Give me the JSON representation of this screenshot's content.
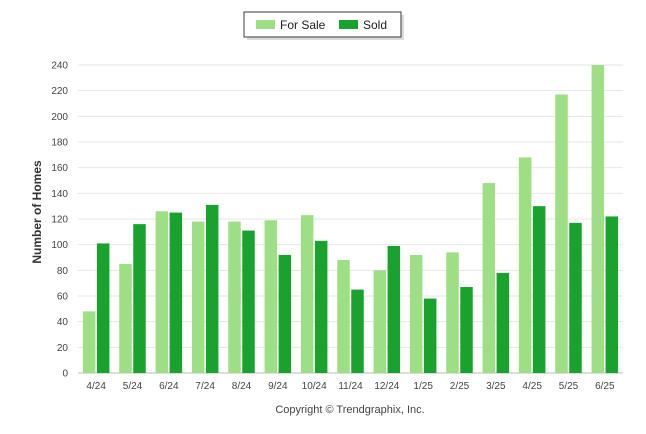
{
  "chart_data": {
    "type": "bar",
    "categories": [
      "4/24",
      "5/24",
      "6/24",
      "7/24",
      "8/24",
      "9/24",
      "10/24",
      "11/24",
      "12/24",
      "1/25",
      "2/25",
      "3/25",
      "4/25",
      "5/25",
      "6/25"
    ],
    "series": [
      {
        "name": "For Sale",
        "color": "#9ede84",
        "values": [
          48,
          85,
          126,
          118,
          118,
          119,
          123,
          88,
          80,
          92,
          94,
          148,
          168,
          217,
          240
        ]
      },
      {
        "name": "Sold",
        "color": "#1aa22f",
        "values": [
          101,
          116,
          125,
          131,
          111,
          92,
          103,
          65,
          99,
          58,
          67,
          78,
          130,
          117,
          122
        ]
      }
    ],
    "ylabel": "Number of Homes",
    "xlabel": "",
    "ylim": [
      0,
      240
    ],
    "yticks": [
      0,
      20,
      40,
      60,
      80,
      100,
      120,
      140,
      160,
      180,
      200,
      220,
      240
    ],
    "grid": true,
    "legend": "top-center"
  },
  "credit": "Copyright © Trendgraphix, Inc."
}
